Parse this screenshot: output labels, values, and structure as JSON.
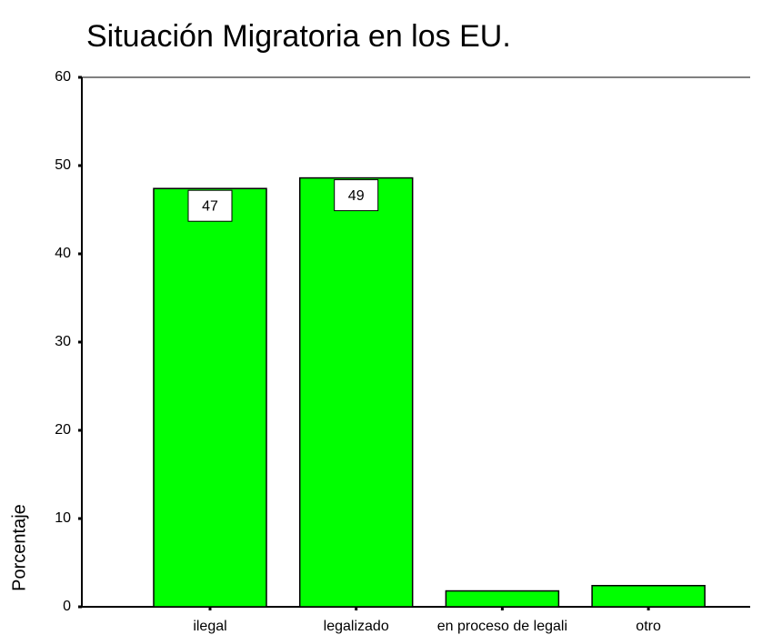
{
  "chart_data": {
    "type": "bar",
    "title": "Situación Migratoria en los EU.",
    "y_label": "Porcentaje",
    "categories": [
      "ilegal",
      "legalizado",
      "en proceso de legali",
      "otro"
    ],
    "values": [
      47.4,
      48.6,
      1.8,
      2.4
    ],
    "value_labels": [
      "47",
      "49",
      null,
      null
    ],
    "color": "#00ff00",
    "ylim": [
      0,
      60
    ],
    "yticks": [
      0,
      10,
      20,
      30,
      40,
      50,
      60
    ],
    "grid": false
  }
}
